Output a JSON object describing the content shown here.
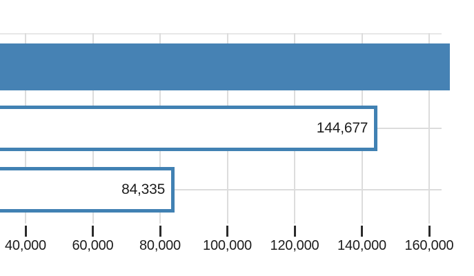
{
  "chart_data": {
    "type": "bar",
    "orientation": "horizontal",
    "bars": [
      {
        "value": null,
        "value_label": "",
        "style": "solid",
        "clipped_right": true
      },
      {
        "value": 144677,
        "value_label": "144,677",
        "style": "outline",
        "clipped_right": false
      },
      {
        "value": 84335,
        "value_label": "84,335",
        "style": "outline",
        "clipped_right": false
      }
    ],
    "x_axis": {
      "tick_interval": 20000,
      "grid": true,
      "ticks": [
        {
          "value": 40000,
          "label": "40,000"
        },
        {
          "value": 60000,
          "label": "60,000"
        },
        {
          "value": 80000,
          "label": "80,000"
        },
        {
          "value": 100000,
          "label": "100,000"
        },
        {
          "value": 120000,
          "label": "120,000"
        },
        {
          "value": 140000,
          "label": "140,000"
        },
        {
          "value": 160000,
          "label": "160,000"
        }
      ]
    },
    "legend": null,
    "colors": {
      "bar_fill": "#4682b4",
      "bar_outline": "#4181b3",
      "gridline": "#dcdcdc",
      "gridline_top": "#e7e7e7",
      "tick_mark": "#2b2b2b",
      "label_text": "#1c1c1c"
    }
  }
}
